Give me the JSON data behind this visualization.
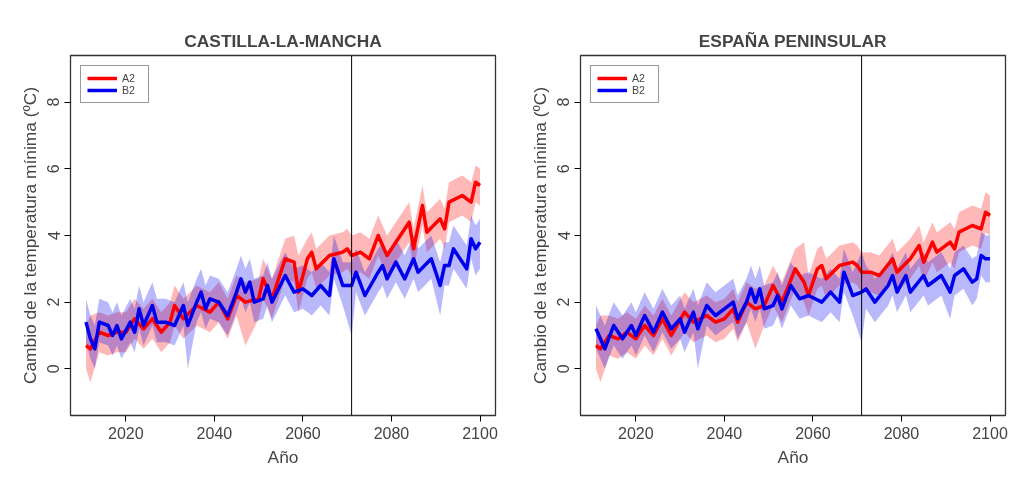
{
  "chart_data": [
    {
      "type": "line",
      "title": "CASTILLA-LA-MANCHA",
      "xlabel": "Año",
      "ylabel": "Cambio de la temperatura mínima (ºC)",
      "xlim": [
        2007.5,
        2103.5
      ],
      "ylim": [
        -1.4,
        9.4
      ],
      "xticks": [
        2020,
        2040,
        2060,
        2080,
        2100
      ],
      "yticks": [
        0,
        2,
        4,
        6,
        8
      ],
      "grid": false,
      "legend": "top left",
      "line_style": "solid",
      "marker": "none",
      "ref_lines": [
        {
          "axis": "x",
          "value": 2071,
          "color": "#000000"
        }
      ],
      "series": [
        {
          "name": "A2",
          "color": "#ff0000",
          "x": [
            2011,
            2012,
            2014,
            2016,
            2018,
            2020,
            2022,
            2024,
            2026,
            2028,
            2030,
            2031,
            2033,
            2036,
            2039,
            2041,
            2043,
            2045,
            2047,
            2050,
            2051,
            2053,
            2056,
            2058,
            2059,
            2061,
            2062,
            2063,
            2066,
            2069,
            2070,
            2071,
            2073,
            2075,
            2077,
            2079,
            2082,
            2084,
            2085,
            2087,
            2088,
            2091,
            2092,
            2093,
            2096,
            2098,
            2099,
            2100
          ],
          "values": [
            0.7,
            0.6,
            1.1,
            1.0,
            1.1,
            1.1,
            1.5,
            1.2,
            1.5,
            1.1,
            1.4,
            1.9,
            1.5,
            1.9,
            1.7,
            2.0,
            1.5,
            2.2,
            2.0,
            2.1,
            2.7,
            2.1,
            3.3,
            3.2,
            2.3,
            3.3,
            3.5,
            3.0,
            3.4,
            3.5,
            3.6,
            3.4,
            3.5,
            3.3,
            4.0,
            3.4,
            4.0,
            4.4,
            3.6,
            4.9,
            4.1,
            4.5,
            4.2,
            5.0,
            5.2,
            5.0,
            5.6,
            5.5
          ],
          "lower": [
            0.0,
            -0.4,
            0.5,
            0.4,
            0.5,
            0.5,
            0.9,
            0.6,
            0.9,
            0.5,
            0.8,
            1.3,
            0.9,
            1.3,
            1.1,
            1.4,
            0.9,
            1.6,
            0.7,
            1.5,
            2.1,
            1.5,
            2.7,
            2.6,
            1.7,
            2.7,
            2.9,
            2.4,
            2.8,
            2.9,
            3.0,
            2.8,
            2.9,
            2.7,
            3.4,
            2.8,
            3.4,
            3.8,
            3.0,
            4.3,
            3.5,
            3.9,
            3.6,
            4.4,
            4.6,
            4.4,
            5.0,
            4.9
          ],
          "upper": [
            1.3,
            1.6,
            1.7,
            1.6,
            1.7,
            1.7,
            2.1,
            1.8,
            2.1,
            1.7,
            2.0,
            2.5,
            2.1,
            2.5,
            2.3,
            2.6,
            2.1,
            2.8,
            2.6,
            2.7,
            3.3,
            2.7,
            3.9,
            4.0,
            3.4,
            3.9,
            4.1,
            3.6,
            4.0,
            4.1,
            4.2,
            4.0,
            4.1,
            3.9,
            4.6,
            4.0,
            4.6,
            5.0,
            4.2,
            5.5,
            4.7,
            5.1,
            4.8,
            5.6,
            5.8,
            5.6,
            6.1,
            6.0
          ]
        },
        {
          "name": "B2",
          "color": "#0000ee",
          "x": [
            2011,
            2012,
            2013,
            2014,
            2016,
            2017,
            2018,
            2019,
            2021,
            2022,
            2023,
            2024,
            2026,
            2027,
            2029,
            2031,
            2033,
            2034,
            2036,
            2037,
            2038,
            2039,
            2041,
            2043,
            2045,
            2046,
            2047,
            2048,
            2049,
            2051,
            2052,
            2053,
            2056,
            2058,
            2060,
            2062,
            2064,
            2066,
            2067,
            2069,
            2071,
            2072,
            2074,
            2077,
            2078,
            2079,
            2081,
            2083,
            2085,
            2086,
            2089,
            2091,
            2092,
            2093,
            2094,
            2097,
            2098,
            2099,
            2100
          ],
          "values": [
            1.4,
            0.9,
            0.6,
            1.4,
            1.3,
            1.0,
            1.3,
            0.9,
            1.4,
            1.1,
            1.8,
            1.3,
            1.9,
            1.4,
            1.4,
            1.3,
            1.9,
            1.3,
            2.0,
            2.3,
            1.8,
            2.1,
            2.0,
            1.6,
            2.3,
            2.7,
            2.3,
            2.6,
            2.0,
            2.1,
            2.5,
            2.0,
            2.8,
            2.3,
            2.4,
            2.2,
            2.5,
            2.2,
            3.3,
            2.5,
            2.5,
            2.9,
            2.2,
            2.9,
            3.1,
            2.7,
            3.2,
            2.7,
            3.3,
            2.9,
            3.3,
            2.5,
            3.1,
            3.1,
            3.6,
            3.0,
            3.9,
            3.6,
            3.8
          ],
          "lower": [
            0.8,
            0.3,
            0.0,
            0.8,
            0.7,
            0.4,
            0.7,
            0.3,
            0.8,
            0.5,
            1.2,
            0.7,
            1.3,
            0.8,
            0.8,
            0.7,
            1.3,
            0.0,
            1.4,
            1.7,
            1.2,
            1.5,
            1.4,
            1.0,
            1.7,
            2.1,
            1.7,
            2.0,
            1.4,
            1.5,
            1.9,
            1.4,
            2.2,
            1.7,
            1.8,
            1.6,
            1.9,
            1.6,
            2.7,
            1.9,
            1.0,
            2.3,
            1.6,
            2.3,
            2.5,
            2.1,
            2.6,
            2.1,
            2.7,
            2.3,
            2.7,
            1.6,
            2.5,
            2.5,
            3.0,
            2.4,
            3.3,
            2.8,
            3.0
          ],
          "upper": [
            2.1,
            1.6,
            1.3,
            2.1,
            2.0,
            1.7,
            2.0,
            1.6,
            2.1,
            1.8,
            2.5,
            2.0,
            2.6,
            2.1,
            2.1,
            2.0,
            2.6,
            2.0,
            2.7,
            3.0,
            2.5,
            2.8,
            2.7,
            2.3,
            3.0,
            3.4,
            3.0,
            3.3,
            2.7,
            2.8,
            3.2,
            2.7,
            3.5,
            3.0,
            3.1,
            2.9,
            3.2,
            2.9,
            4.0,
            3.2,
            3.2,
            3.6,
            2.9,
            3.6,
            3.8,
            3.4,
            3.9,
            3.4,
            4.0,
            3.6,
            4.0,
            3.2,
            3.8,
            3.8,
            4.3,
            3.7,
            4.6,
            4.3,
            4.5
          ]
        }
      ]
    },
    {
      "type": "line",
      "title": "ESPAÑA PENINSULAR",
      "xlabel": "Año",
      "ylabel": "Cambio de la temperatura mínima (ºC)",
      "xlim": [
        2007.5,
        2103.5
      ],
      "ylim": [
        -1.4,
        9.4
      ],
      "xticks": [
        2020,
        2040,
        2060,
        2080,
        2100
      ],
      "yticks": [
        0,
        2,
        4,
        6,
        8
      ],
      "grid": false,
      "legend": "top left",
      "line_style": "solid",
      "marker": "none",
      "ref_lines": [
        {
          "axis": "x",
          "value": 2071,
          "color": "#000000"
        }
      ],
      "series": [
        {
          "name": "A2",
          "color": "#ff0000",
          "x": [
            2011,
            2012,
            2014,
            2016,
            2018,
            2020,
            2022,
            2024,
            2026,
            2028,
            2031,
            2033,
            2036,
            2038,
            2040,
            2042,
            2043,
            2045,
            2047,
            2049,
            2051,
            2053,
            2056,
            2058,
            2059,
            2061,
            2062,
            2063,
            2066,
            2069,
            2070,
            2071,
            2073,
            2075,
            2078,
            2079,
            2082,
            2084,
            2085,
            2087,
            2088,
            2091,
            2092,
            2093,
            2096,
            2098,
            2099,
            2100
          ],
          "values": [
            0.7,
            0.6,
            1.0,
            0.9,
            1.1,
            0.9,
            1.3,
            1.0,
            1.5,
            1.0,
            1.7,
            1.4,
            1.6,
            1.4,
            1.5,
            1.8,
            1.4,
            2.0,
            1.8,
            1.9,
            2.5,
            2.0,
            3.0,
            2.6,
            2.2,
            3.0,
            3.1,
            2.7,
            3.1,
            3.2,
            3.1,
            2.9,
            2.9,
            2.8,
            3.3,
            2.9,
            3.3,
            3.7,
            3.2,
            3.8,
            3.5,
            3.8,
            3.6,
            4.1,
            4.3,
            4.2,
            4.7,
            4.6
          ],
          "lower": [
            0.0,
            -0.4,
            0.4,
            0.3,
            0.5,
            0.3,
            0.7,
            0.4,
            0.9,
            0.4,
            1.1,
            0.8,
            1.0,
            0.8,
            0.9,
            1.2,
            0.8,
            1.4,
            0.6,
            1.3,
            1.9,
            1.4,
            2.4,
            2.0,
            1.6,
            2.4,
            2.5,
            2.1,
            2.5,
            2.6,
            2.5,
            2.3,
            2.3,
            2.2,
            2.7,
            2.3,
            2.7,
            3.1,
            2.6,
            3.2,
            2.9,
            3.2,
            3.0,
            3.5,
            3.7,
            3.6,
            4.1,
            4.0
          ],
          "upper": [
            1.3,
            1.6,
            1.6,
            1.5,
            1.7,
            1.5,
            1.9,
            1.6,
            2.1,
            1.6,
            2.3,
            2.0,
            2.2,
            2.0,
            2.1,
            2.4,
            2.0,
            2.6,
            2.4,
            2.5,
            3.1,
            2.6,
            3.6,
            3.8,
            2.8,
            3.6,
            3.7,
            3.3,
            3.7,
            3.8,
            3.7,
            3.5,
            3.5,
            3.4,
            3.9,
            3.5,
            3.9,
            4.3,
            3.8,
            4.4,
            4.1,
            4.4,
            4.2,
            4.7,
            4.9,
            4.8,
            5.3,
            5.2
          ]
        },
        {
          "name": "B2",
          "color": "#0000ee",
          "x": [
            2011,
            2013,
            2015,
            2017,
            2019,
            2020,
            2022,
            2024,
            2026,
            2028,
            2030,
            2031,
            2033,
            2034,
            2036,
            2038,
            2040,
            2042,
            2043,
            2045,
            2046,
            2047,
            2048,
            2049,
            2051,
            2052,
            2053,
            2055,
            2057,
            2059,
            2062,
            2064,
            2066,
            2067,
            2069,
            2071,
            2072,
            2074,
            2077,
            2078,
            2079,
            2081,
            2082,
            2085,
            2086,
            2089,
            2091,
            2092,
            2094,
            2096,
            2097,
            2098,
            2099,
            2100
          ],
          "values": [
            1.2,
            0.6,
            1.3,
            0.9,
            1.3,
            1.0,
            1.6,
            1.1,
            1.7,
            1.2,
            1.5,
            1.1,
            1.7,
            1.2,
            1.9,
            1.6,
            1.8,
            2.0,
            1.5,
            2.0,
            2.4,
            2.0,
            2.4,
            1.8,
            1.9,
            2.2,
            1.8,
            2.5,
            2.1,
            2.2,
            2.0,
            2.3,
            2.0,
            2.9,
            2.2,
            2.3,
            2.4,
            2.0,
            2.5,
            2.8,
            2.3,
            2.8,
            2.3,
            2.8,
            2.5,
            2.8,
            2.3,
            2.8,
            3.0,
            2.6,
            2.7,
            3.4,
            3.3,
            3.3
          ],
          "lower": [
            0.6,
            0.0,
            0.7,
            0.3,
            0.7,
            0.4,
            1.0,
            0.5,
            1.1,
            0.6,
            0.9,
            0.5,
            1.1,
            0.0,
            1.3,
            1.0,
            1.2,
            1.4,
            0.9,
            1.4,
            1.8,
            1.4,
            1.8,
            1.2,
            1.3,
            1.6,
            1.2,
            1.9,
            1.5,
            1.6,
            1.4,
            1.7,
            1.4,
            2.3,
            1.6,
            0.8,
            1.8,
            1.4,
            1.9,
            2.2,
            1.7,
            2.2,
            1.7,
            2.2,
            1.9,
            2.2,
            1.5,
            2.2,
            2.4,
            1.9,
            2.1,
            2.8,
            2.6,
            2.6
          ],
          "upper": [
            1.9,
            1.3,
            2.0,
            1.6,
            2.0,
            1.7,
            2.3,
            1.8,
            2.4,
            1.9,
            2.2,
            1.8,
            2.4,
            1.9,
            2.6,
            2.3,
            2.5,
            2.7,
            2.2,
            2.7,
            3.1,
            2.7,
            3.1,
            2.5,
            2.6,
            2.9,
            2.5,
            3.2,
            2.8,
            2.9,
            2.7,
            3.0,
            2.7,
            3.6,
            2.9,
            3.5,
            3.1,
            2.7,
            3.2,
            3.5,
            3.0,
            3.5,
            3.0,
            3.5,
            3.2,
            3.5,
            3.0,
            3.5,
            3.7,
            3.3,
            3.4,
            4.1,
            4.0,
            4.0
          ]
        }
      ]
    }
  ]
}
